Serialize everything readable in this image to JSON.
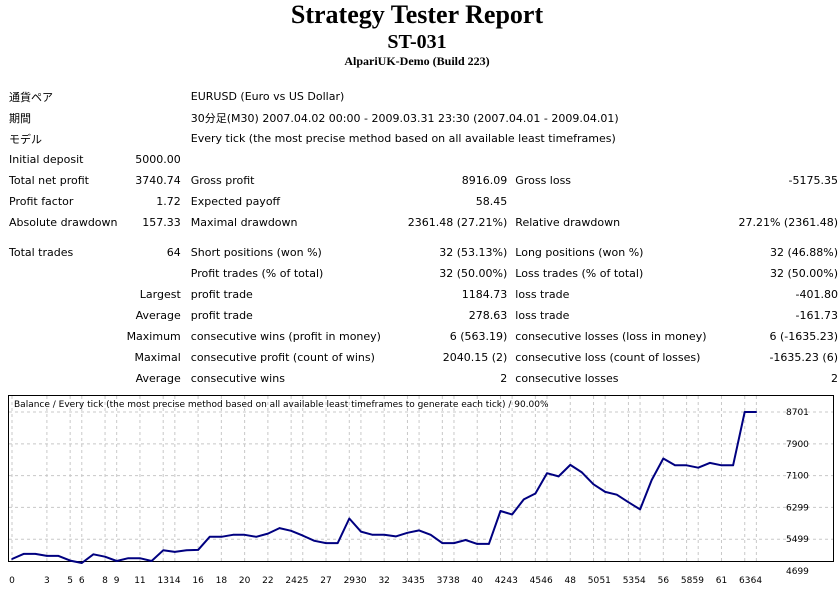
{
  "header": {
    "title": "Strategy Tester Report",
    "expert": "ST-031",
    "server": "AlpariUK-Demo (Build 223)"
  },
  "summary": {
    "symbol_label": "通貨ペア",
    "symbol_value": "EURUSD (Euro vs US Dollar)",
    "period_label": "期間",
    "period_value": "30分足(M30) 2007.04.02 00:00 - 2009.03.31 23:30 (2007.04.01 - 2009.04.01)",
    "model_label": "モデル",
    "model_value": "Every tick (the most precise method based on all available least timeframes)",
    "initial_deposit_label": "Initial deposit",
    "initial_deposit_value": "5000.00",
    "total_net_profit_label": "Total net profit",
    "total_net_profit_value": "3740.74",
    "gross_profit_label": "Gross profit",
    "gross_profit_value": "8916.09",
    "gross_loss_label": "Gross loss",
    "gross_loss_value": "-5175.35",
    "profit_factor_label": "Profit factor",
    "profit_factor_value": "1.72",
    "expected_payoff_label": "Expected payoff",
    "expected_payoff_value": "58.45",
    "absolute_drawdown_label": "Absolute drawdown",
    "absolute_drawdown_value": "157.33",
    "maximal_drawdown_label": "Maximal drawdown",
    "maximal_drawdown_value": "2361.48 (27.21%)",
    "relative_drawdown_label": "Relative drawdown",
    "relative_drawdown_value": "27.21% (2361.48)"
  },
  "trades": {
    "total_trades_label": "Total trades",
    "total_trades_value": "64",
    "short_label": "Short positions (won %)",
    "short_value": "32 (53.13%)",
    "long_label": "Long positions (won %)",
    "long_value": "32 (46.88%)",
    "profit_trades_label": "Profit trades (% of total)",
    "profit_trades_value": "32 (50.00%)",
    "loss_trades_label": "Loss trades (% of total)",
    "loss_trades_value": "32 (50.00%)",
    "largest_label": "Largest",
    "largest_profit_label": "profit trade",
    "largest_profit_value": "1184.73",
    "largest_loss_label": "loss trade",
    "largest_loss_value": "-401.80",
    "average_label": "Average",
    "average_profit_label": "profit trade",
    "average_profit_value": "278.63",
    "average_loss_label": "loss trade",
    "average_loss_value": "-161.73",
    "maximum_label": "Maximum",
    "max_cons_wins_label": "consecutive wins (profit in money)",
    "max_cons_wins_value": "6 (563.19)",
    "max_cons_losses_label": "consecutive losses (loss in money)",
    "max_cons_losses_value": "6 (-1635.23)",
    "maximal_label": "Maximal",
    "maximal_cons_profit_label": "consecutive profit (count of wins)",
    "maximal_cons_profit_value": "2040.15 (2)",
    "maximal_cons_loss_label": "consecutive loss (count of losses)",
    "maximal_cons_loss_value": "-1635.23 (6)",
    "average2_label": "Average",
    "avg_cons_wins_label": "consecutive wins",
    "avg_cons_wins_value": "2",
    "avg_cons_losses_label": "consecutive losses",
    "avg_cons_losses_value": "2"
  },
  "chart_data": {
    "type": "line",
    "title": "Balance / Every tick (the most precise method based on all available least timeframes to generate each tick) / 90.00%",
    "xlabel": "",
    "ylabel": "",
    "x_ticks": [
      0,
      3,
      5,
      6,
      8,
      9,
      11,
      13,
      14,
      16,
      18,
      20,
      22,
      24,
      25,
      27,
      29,
      30,
      32,
      34,
      35,
      37,
      38,
      40,
      42,
      43,
      45,
      46,
      48,
      50,
      51,
      53,
      54,
      56,
      58,
      59,
      61,
      63,
      64
    ],
    "x_tick_labels": [
      "0",
      "3",
      "5",
      "6",
      "8",
      "9",
      "11",
      "13",
      "14",
      "16",
      "18",
      "20",
      "22",
      "24",
      "25",
      "27",
      "29",
      "30",
      "32",
      "34",
      "35",
      "37",
      "38",
      "40",
      "42",
      "43",
      "45",
      "46",
      "48",
      "50",
      "51",
      "53",
      "54",
      "56",
      "58",
      "59",
      "61",
      "63",
      "64"
    ],
    "y_ticks": [
      4699,
      5499,
      6299,
      7100,
      7900,
      8701
    ],
    "xlim": [
      0,
      65
    ],
    "ylim": [
      4699,
      8850
    ],
    "grid": true,
    "line_color": "#000080",
    "x": [
      0,
      1,
      2,
      3,
      4,
      5,
      6,
      7,
      8,
      9,
      10,
      11,
      12,
      13,
      14,
      15,
      16,
      17,
      18,
      19,
      20,
      21,
      22,
      23,
      24,
      25,
      26,
      27,
      28,
      29,
      30,
      31,
      32,
      33,
      34,
      35,
      36,
      37,
      38,
      39,
      40,
      41,
      42,
      43,
      44,
      45,
      46,
      47,
      48,
      49,
      50,
      51,
      52,
      53,
      54,
      55,
      56,
      57,
      58,
      59,
      60,
      61,
      62,
      63,
      64
    ],
    "values": [
      5000,
      5130,
      5130,
      5080,
      5080,
      4960,
      4900,
      5120,
      5060,
      4950,
      5020,
      5020,
      4950,
      5220,
      5180,
      5220,
      5230,
      5560,
      5560,
      5610,
      5610,
      5560,
      5640,
      5780,
      5710,
      5590,
      5460,
      5400,
      5400,
      6020,
      5690,
      5610,
      5610,
      5570,
      5660,
      5720,
      5610,
      5400,
      5400,
      5480,
      5380,
      5380,
      6210,
      6120,
      6500,
      6650,
      7160,
      7080,
      7370,
      7180,
      6880,
      6690,
      6620,
      6430,
      6250,
      6990,
      7530,
      7360,
      7360,
      7300,
      7420,
      7360,
      7360,
      8701,
      8701
    ]
  }
}
